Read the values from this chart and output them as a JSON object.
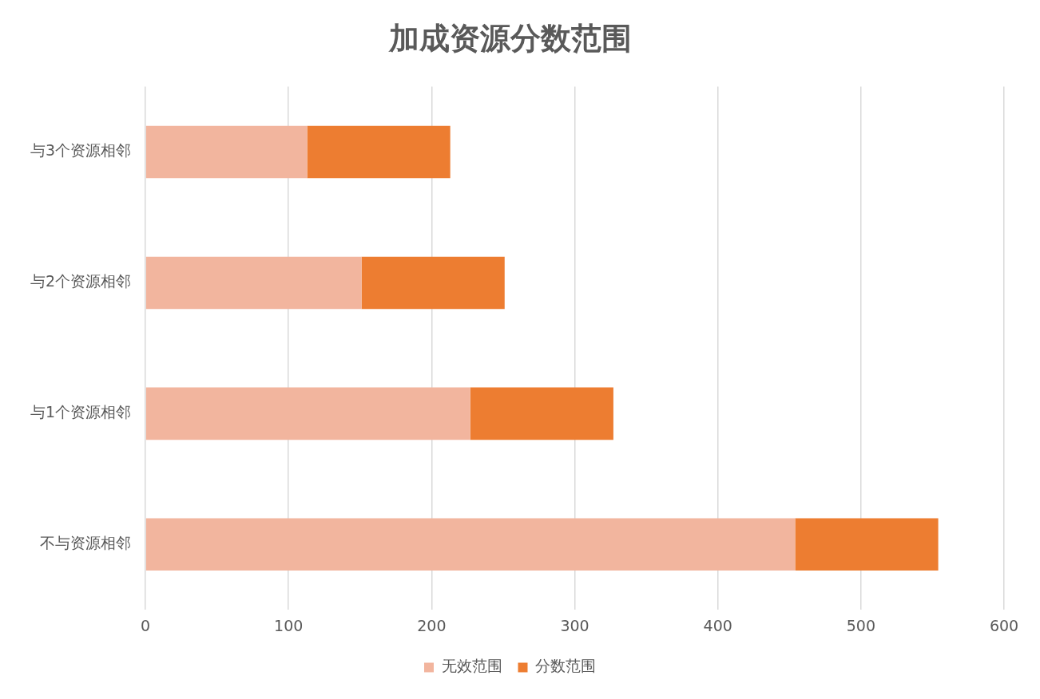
{
  "chart_data": {
    "type": "bar",
    "orientation": "horizontal",
    "stacked": true,
    "title": "加成资源分数范围",
    "categories": [
      "与3个资源相邻",
      "与2个资源相邻",
      "与1个资源相邻",
      "不与资源相邻"
    ],
    "series": [
      {
        "name": "无效范围",
        "color": "#f2b59e",
        "values": [
          113,
          151,
          227,
          454
        ]
      },
      {
        "name": "分数范围",
        "color": "#ed7d31",
        "values": [
          100,
          100,
          100,
          100
        ]
      }
    ],
    "xlim": [
      0,
      600
    ],
    "xticks": [
      0,
      100,
      200,
      300,
      400,
      500,
      600
    ],
    "grid": "x",
    "legend": "bottom"
  }
}
